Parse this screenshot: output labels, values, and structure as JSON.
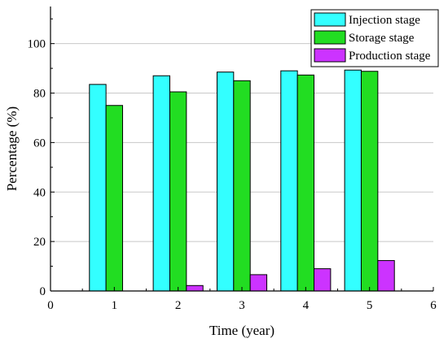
{
  "chart_data": {
    "type": "bar",
    "xlabel": "Time (year)",
    "ylabel": "Percentage (%)",
    "xlim": [
      0,
      6
    ],
    "ylim": [
      0,
      115
    ],
    "x_ticks": [
      "0",
      "1",
      "2",
      "3",
      "4",
      "5",
      "6"
    ],
    "y_ticks": [
      "0",
      "20",
      "40",
      "60",
      "80",
      "100"
    ],
    "categories": [
      1,
      2,
      3,
      4,
      5
    ],
    "grid": "horizontal",
    "legend_position": "top-right",
    "series": [
      {
        "name": "Injection stage",
        "color": "#33ffff",
        "values": [
          83.5,
          87.0,
          88.5,
          89.0,
          89.3
        ]
      },
      {
        "name": "Storage stage",
        "color": "#22dd22",
        "values": [
          75.0,
          80.5,
          85.0,
          87.3,
          88.8
        ]
      },
      {
        "name": "Production stage",
        "color": "#cc33ff",
        "values": [
          0,
          2.2,
          6.6,
          9.0,
          12.3
        ]
      }
    ]
  }
}
